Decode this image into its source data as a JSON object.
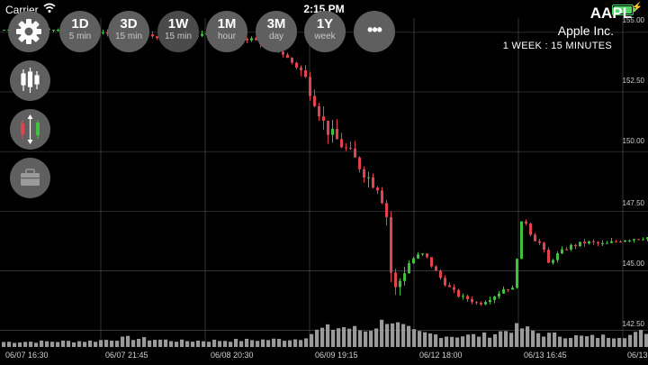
{
  "status_bar": {
    "carrier": "Carrier",
    "time": "2:15 PM"
  },
  "stock": {
    "ticker": "AAPL",
    "company": "Apple Inc.",
    "range_label": "1 WEEK : 15 MINUTES"
  },
  "toolbar": {
    "timeframes": [
      {
        "main": "1D",
        "sub": "5 min"
      },
      {
        "main": "3D",
        "sub": "15 min"
      },
      {
        "main": "1W",
        "sub": "15 min"
      },
      {
        "main": "1M",
        "sub": "hour"
      },
      {
        "main": "3M",
        "sub": "day"
      },
      {
        "main": "1Y",
        "sub": "week"
      }
    ],
    "selected": "1W",
    "more_label": "•••"
  },
  "side_buttons": [
    "gear-icon",
    "candlestick-icon",
    "compare-icon",
    "briefcase-icon"
  ],
  "colors": {
    "up": "#3cc23c",
    "down": "#e0434b",
    "volume": "#9a9a9a",
    "grid": "#555555",
    "button": "#5f5f5f",
    "battery": "#4cd964"
  },
  "chart_data": {
    "type": "candlestick",
    "y_ticks": [
      "155.00",
      "152.50",
      "150.00",
      "147.50",
      "145.00",
      "142.50"
    ],
    "x_ticks": [
      "06/07 16:30",
      "06/07 21:45",
      "06/08 20:30",
      "06/09 19:15",
      "06/12 18:00",
      "06/13 16:45",
      "06/13"
    ],
    "ylim": [
      141.8,
      155.6
    ],
    "price_path": [
      [
        0,
        155.1
      ],
      [
        45,
        155.2
      ],
      [
        90,
        155.0
      ],
      [
        140,
        154.9
      ],
      [
        190,
        154.8
      ],
      [
        240,
        154.9
      ],
      [
        280,
        154.7
      ],
      [
        310,
        154.2
      ],
      [
        335,
        153.3
      ],
      [
        350,
        152.0
      ],
      [
        360,
        151.0
      ],
      [
        375,
        150.4
      ],
      [
        390,
        149.8
      ],
      [
        400,
        149.3
      ],
      [
        410,
        148.8
      ],
      [
        420,
        148.5
      ],
      [
        428,
        147.3
      ],
      [
        435,
        144.0
      ],
      [
        442,
        144.5
      ],
      [
        450,
        145.2
      ],
      [
        460,
        145.6
      ],
      [
        470,
        145.7
      ],
      [
        480,
        145.1
      ],
      [
        490,
        144.6
      ],
      [
        500,
        144.2
      ],
      [
        510,
        143.9
      ],
      [
        520,
        143.8
      ],
      [
        530,
        143.6
      ],
      [
        540,
        143.8
      ],
      [
        550,
        144.0
      ],
      [
        560,
        144.3
      ],
      [
        570,
        144.2
      ],
      [
        575,
        146.5
      ],
      [
        580,
        147.3
      ],
      [
        590,
        146.4
      ],
      [
        600,
        146.1
      ],
      [
        608,
        145.3
      ],
      [
        615,
        145.6
      ],
      [
        630,
        146.0
      ],
      [
        650,
        146.2
      ],
      [
        670,
        146.1
      ],
      [
        690,
        146.3
      ],
      [
        715,
        146.4
      ]
    ],
    "volume_hint": [
      [
        0,
        0.25
      ],
      [
        100,
        0.3
      ],
      [
        140,
        0.45
      ],
      [
        200,
        0.3
      ],
      [
        280,
        0.35
      ],
      [
        330,
        0.4
      ],
      [
        355,
        0.9
      ],
      [
        380,
        1.0
      ],
      [
        405,
        0.8
      ],
      [
        425,
        1.3
      ],
      [
        430,
        1.5
      ],
      [
        440,
        1.1
      ],
      [
        460,
        0.7
      ],
      [
        500,
        0.55
      ],
      [
        540,
        0.6
      ],
      [
        575,
        1.0
      ],
      [
        600,
        0.65
      ],
      [
        650,
        0.5
      ],
      [
        700,
        0.6
      ],
      [
        715,
        0.8
      ]
    ]
  }
}
